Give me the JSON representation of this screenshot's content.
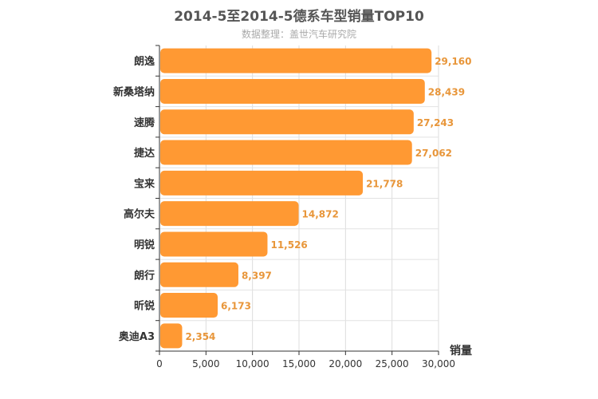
{
  "chart_data": {
    "type": "bar",
    "orientation": "horizontal",
    "title": "2014-5至2014-5德系车型销量TOP10",
    "subtitle": "数据整理：盖世汽车研究院",
    "categories": [
      "朗逸",
      "新桑塔纳",
      "速腾",
      "捷达",
      "宝来",
      "高尔夫",
      "明锐",
      "朗行",
      "昕锐",
      "奥迪A3"
    ],
    "values": [
      29160,
      28439,
      27243,
      27062,
      21778,
      14872,
      11526,
      8397,
      6173,
      2354
    ],
    "value_labels": [
      "29,160",
      "28,439",
      "27,243",
      "27,062",
      "21,778",
      "14,872",
      "11,526",
      "8,397",
      "6,173",
      "2,354"
    ],
    "xlabel": "销量",
    "ylabel": "",
    "xlim": [
      0,
      30000
    ],
    "x_ticks": [
      0,
      5000,
      10000,
      15000,
      20000,
      25000,
      30000
    ],
    "x_tick_labels": [
      "0",
      "5,000",
      "10,000",
      "15,000",
      "20,000",
      "25,000",
      "30,000"
    ],
    "grid": true,
    "bar_color": "#ff9933",
    "label_color": "#e8963a"
  }
}
